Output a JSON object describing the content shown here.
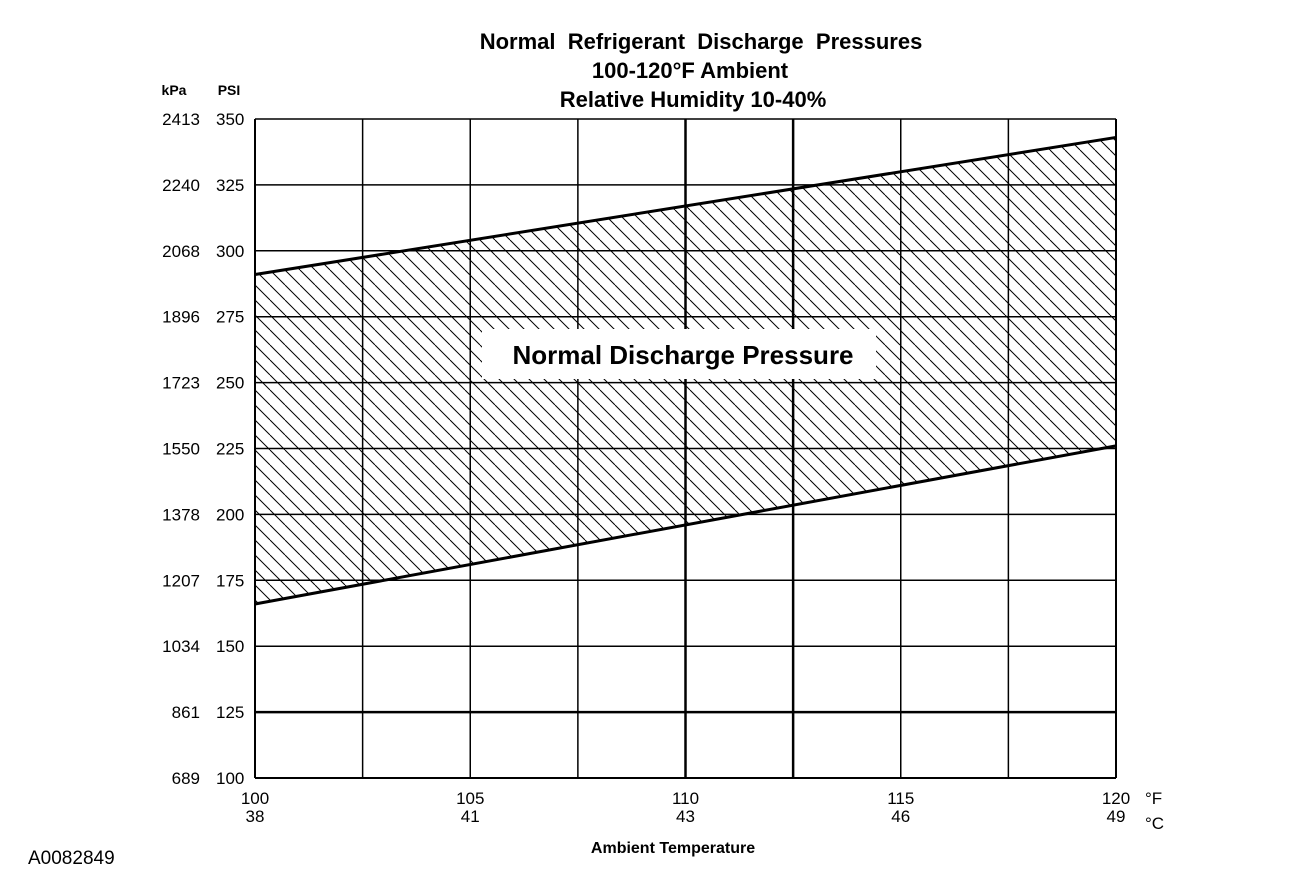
{
  "figure_id": "A0082849",
  "chart_data": {
    "type": "area",
    "title_lines": [
      "Normal  Refrigerant  Discharge  Pressures",
      "100-120°F Ambient",
      "Relative Humidity 10-40%"
    ],
    "xlabel": "Ambient Temperature",
    "x_unit_primary": "°F",
    "x_unit_secondary": "°C",
    "y_unit_primary": "PSI",
    "y_unit_secondary": "kPa",
    "xlim": [
      100,
      120
    ],
    "ylim": [
      100,
      350
    ],
    "x_ticks": [
      {
        "f": 100,
        "f_label": "100",
        "c_label": "38"
      },
      {
        "f": 105,
        "f_label": "105",
        "c_label": "41"
      },
      {
        "f": 110,
        "f_label": "110",
        "c_label": "43"
      },
      {
        "f": 115,
        "f_label": "115",
        "c_label": "46"
      },
      {
        "f": 120,
        "f_label": "120",
        "c_label": "49"
      }
    ],
    "x_gridlines": [
      100,
      102.5,
      105,
      107.5,
      110,
      112.5,
      115,
      117.5,
      120
    ],
    "y_ticks": [
      {
        "psi": 350,
        "psi_label": "350",
        "kpa_label": "2413"
      },
      {
        "psi": 325,
        "psi_label": "325",
        "kpa_label": "2240"
      },
      {
        "psi": 300,
        "psi_label": "300",
        "kpa_label": "2068"
      },
      {
        "psi": 275,
        "psi_label": "275",
        "kpa_label": "1896"
      },
      {
        "psi": 250,
        "psi_label": "250",
        "kpa_label": "1723"
      },
      {
        "psi": 225,
        "psi_label": "225",
        "kpa_label": "1550"
      },
      {
        "psi": 200,
        "psi_label": "200",
        "kpa_label": "1378"
      },
      {
        "psi": 175,
        "psi_label": "175",
        "kpa_label": "1207"
      },
      {
        "psi": 150,
        "psi_label": "150",
        "kpa_label": "1034"
      },
      {
        "psi": 125,
        "psi_label": "125",
        "kpa_label": "861"
      },
      {
        "psi": 100,
        "psi_label": "100",
        "kpa_label": "689"
      }
    ],
    "band_label": "Normal Discharge Pressure",
    "series": [
      {
        "x": [
          100,
          120
        ],
        "y": [
          291,
          343
        ]
      },
      {
        "x": [
          100,
          120
        ],
        "y": [
          166,
          226
        ]
      }
    ],
    "grid": true,
    "fill_pattern": "diagonal-hatch",
    "colors": {
      "line": "#000000",
      "background": "#ffffff"
    }
  }
}
